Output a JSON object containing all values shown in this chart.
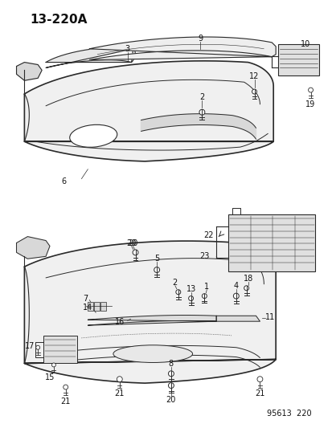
{
  "title": "13-220A",
  "footer": "95613  220",
  "bg_color": "#ffffff",
  "line_color": "#2a2a2a",
  "text_color": "#111111",
  "title_fontsize": 11,
  "footer_fontsize": 7,
  "label_fontsize": 7,
  "fig_width": 4.14,
  "fig_height": 5.33,
  "dpi": 100
}
